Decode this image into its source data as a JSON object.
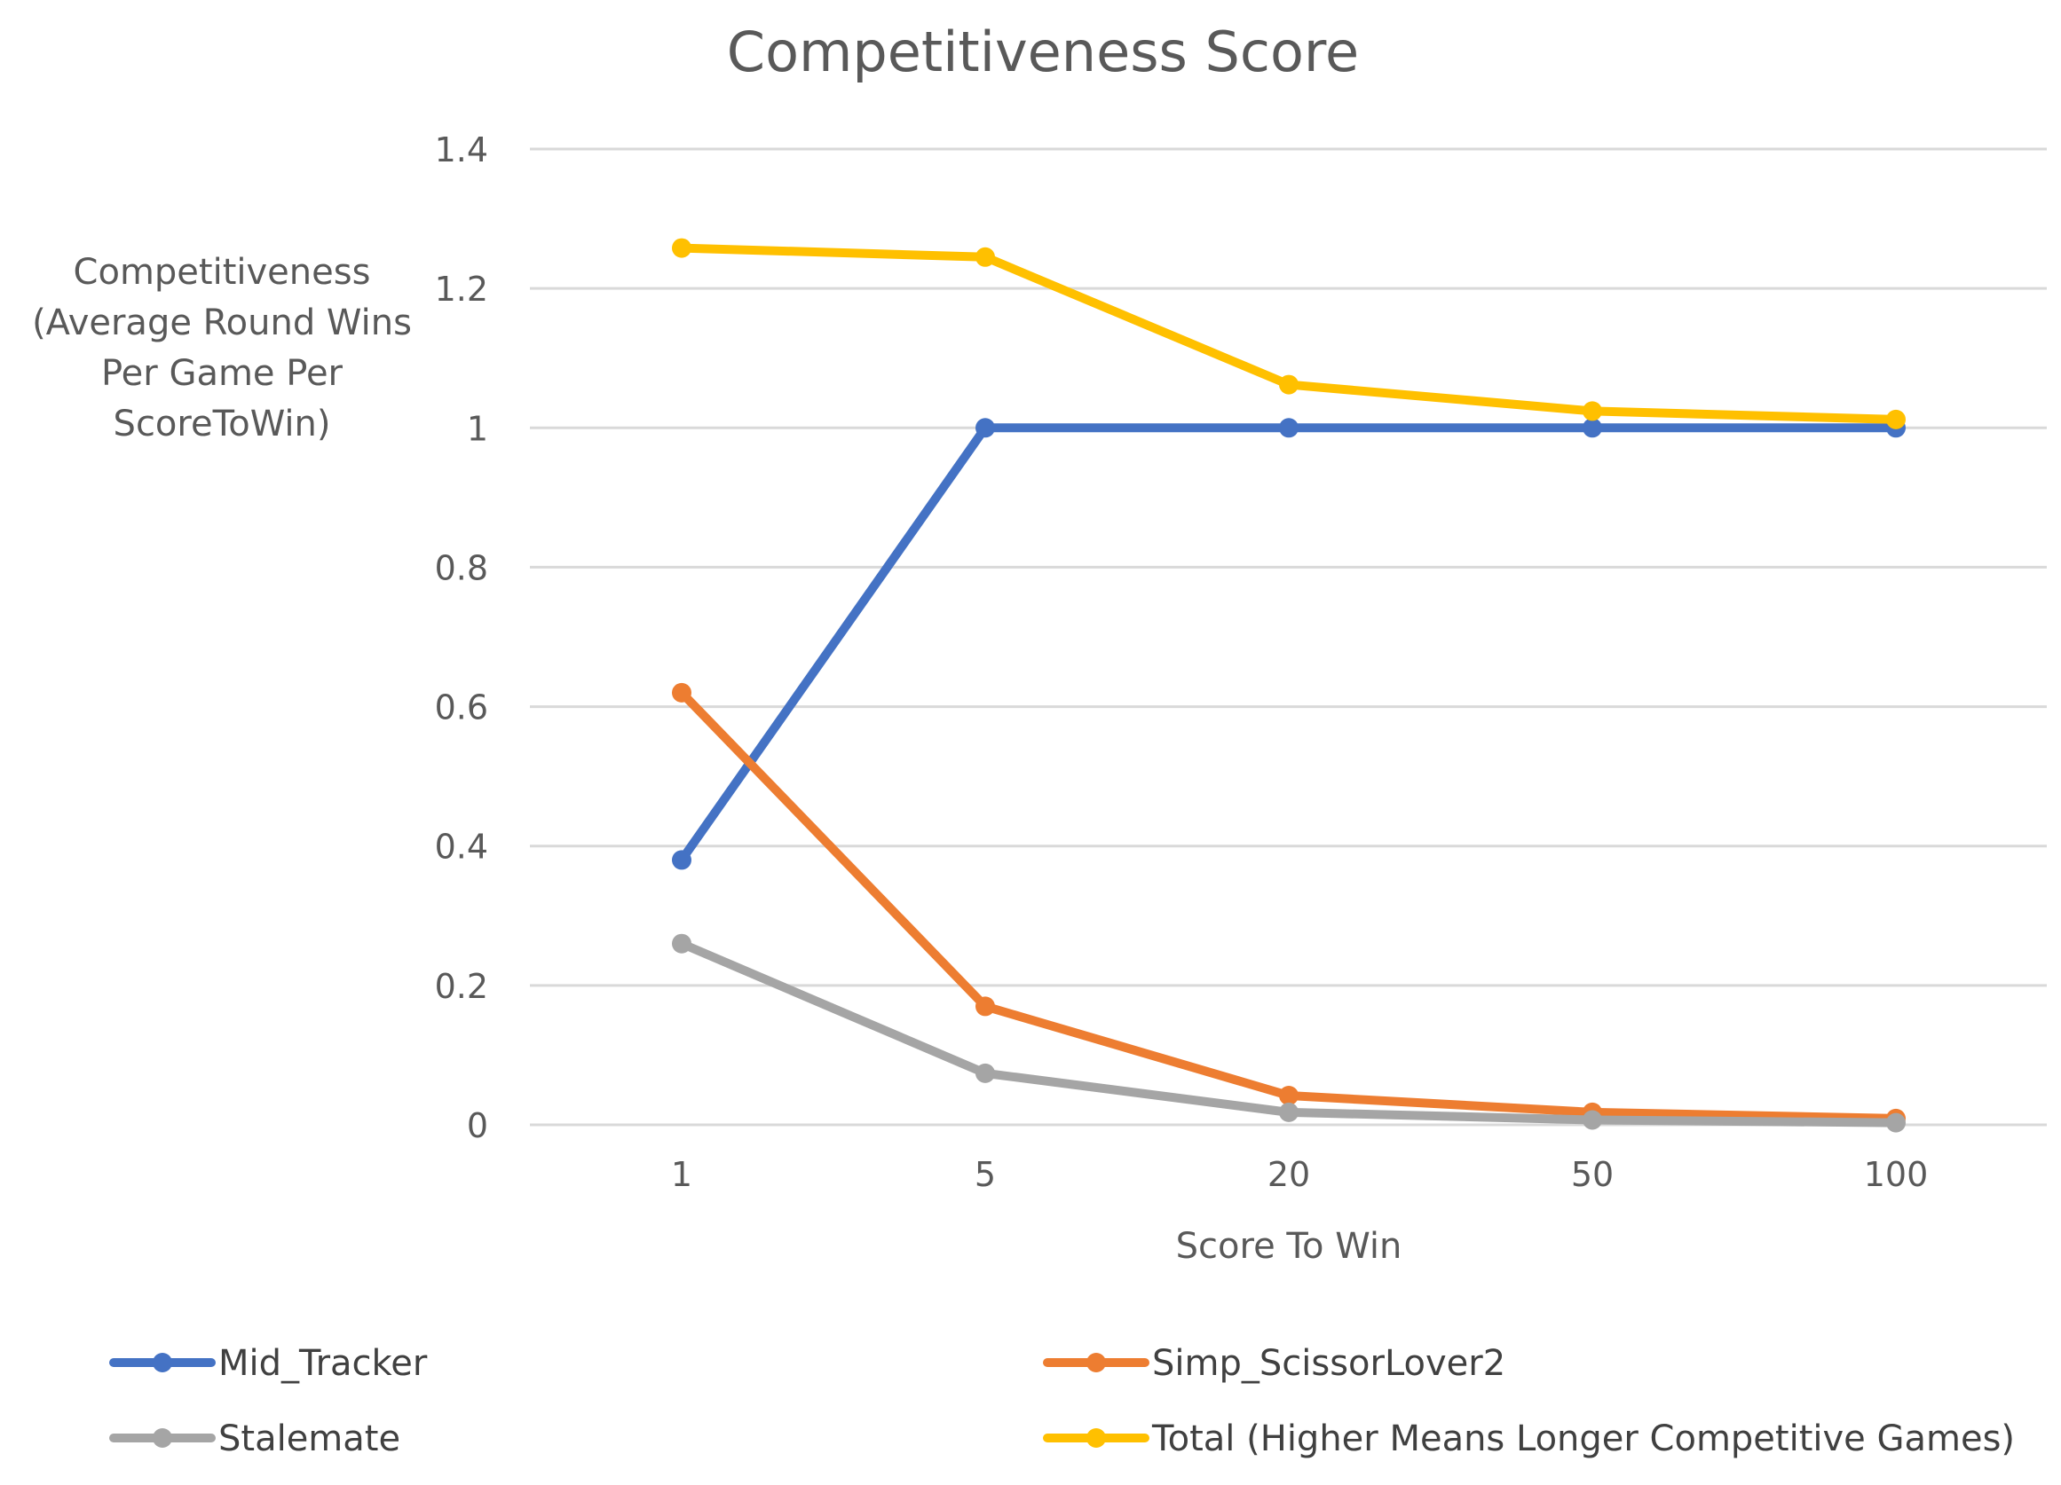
{
  "chart_data": {
    "type": "line",
    "title": "Competitiveness Score",
    "xlabel": "Score To Win",
    "ylabel_lines": [
      "Competitiveness",
      "(Average Round Wins",
      "Per Game Per",
      "ScoreToWin)"
    ],
    "categories": [
      "1",
      "5",
      "20",
      "50",
      "100"
    ],
    "ylim": [
      0,
      1.4
    ],
    "yticks": [
      "0",
      "0.2",
      "0.4",
      "0.6",
      "0.8",
      "1",
      "1.2",
      "1.4"
    ],
    "ytick_values": [
      0,
      0.2,
      0.4,
      0.6,
      0.8,
      1.0,
      1.2,
      1.4
    ],
    "grid": true,
    "legend_position": "bottom",
    "series": [
      {
        "name": "Mid_Tracker",
        "color": "#4472C4",
        "values": [
          0.38,
          1.0,
          1.0,
          1.0,
          1.0
        ]
      },
      {
        "name": "Simp_ScissorLover2",
        "color": "#ED7D31",
        "values": [
          0.62,
          0.17,
          0.042,
          0.018,
          0.009
        ]
      },
      {
        "name": "Stalemate",
        "color": "#A5A5A5",
        "values": [
          0.26,
          0.074,
          0.018,
          0.007,
          0.003
        ]
      },
      {
        "name": "Total (Higher Means Longer Competitive Games)",
        "color": "#FFC000",
        "values": [
          1.258,
          1.245,
          1.062,
          1.024,
          1.012
        ]
      }
    ]
  }
}
